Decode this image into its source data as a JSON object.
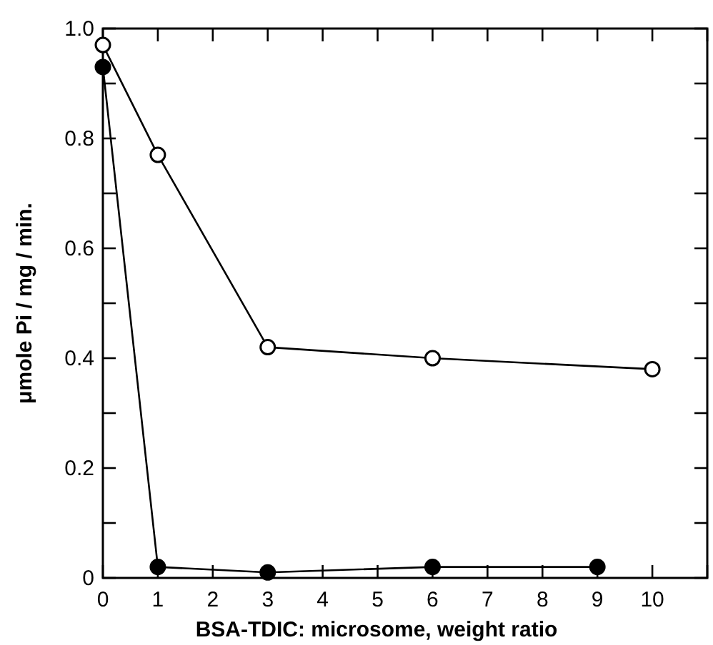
{
  "chart_data": {
    "type": "line",
    "xlabel": "BSA-TDIC: microsome, weight ratio",
    "ylabel": "μmole Pi / mg / min.",
    "xlim": [
      0,
      11
    ],
    "xticks": [
      0,
      1,
      2,
      3,
      4,
      5,
      6,
      7,
      8,
      9,
      10,
      {
        "value": 11,
        "label": null
      }
    ],
    "ylim": [
      0,
      1.0
    ],
    "yticks": [
      {
        "value": 0,
        "label": "0"
      },
      {
        "value": 0.1,
        "label": null
      },
      {
        "value": 0.2,
        "label": "0.2"
      },
      {
        "value": 0.3,
        "label": null
      },
      {
        "value": 0.4,
        "label": "0.4"
      },
      {
        "value": 0.5,
        "label": null
      },
      {
        "value": 0.6,
        "label": "0.6"
      },
      {
        "value": 0.7,
        "label": null
      },
      {
        "value": 0.8,
        "label": "0.8"
      },
      {
        "value": 0.9,
        "label": null
      },
      {
        "value": 1.0,
        "label": "1.0"
      }
    ],
    "marker": "circle",
    "line_style": "solid",
    "grid": false,
    "series": [
      {
        "color": "#000000",
        "x": [
          0,
          1,
          3,
          6,
          10
        ],
        "values": [
          0.97,
          0.77,
          0.42,
          0.4,
          0.38
        ]
      },
      {
        "color": "#000000",
        "x": [
          0,
          1,
          3,
          6,
          9
        ],
        "values": [
          0.93,
          0.02,
          0.01,
          0.02,
          0.02
        ]
      }
    ]
  }
}
